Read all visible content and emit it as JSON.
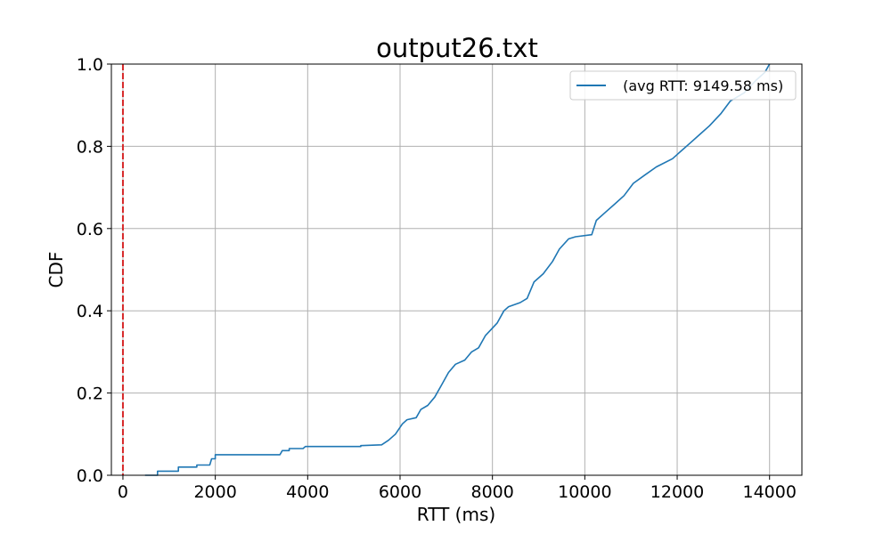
{
  "chart_data": {
    "type": "line",
    "title": "output26.txt",
    "xlabel": "RTT (ms)",
    "ylabel": "CDF",
    "xlim": [
      -250,
      14700
    ],
    "ylim": [
      0.0,
      1.0
    ],
    "x_ticks": [
      0,
      2000,
      4000,
      6000,
      8000,
      10000,
      12000,
      14000
    ],
    "x_tick_labels": [
      "0",
      "2000",
      "4000",
      "6000",
      "8000",
      "10000",
      "12000",
      "14000"
    ],
    "y_ticks": [
      0.0,
      0.2,
      0.4,
      0.6,
      0.8,
      1.0
    ],
    "y_tick_labels": [
      "0.0",
      "0.2",
      "0.4",
      "0.6",
      "0.8",
      "1.0"
    ],
    "grid": true,
    "legend_position": "top-right",
    "reference_line": {
      "x": 0,
      "color": "#d62728",
      "style": "dashed"
    },
    "series": [
      {
        "name": " (avg RTT: 9149.58 ms)",
        "color": "#1f77b4",
        "points": [
          [
            480,
            0.0
          ],
          [
            750,
            0.0
          ],
          [
            750,
            0.01
          ],
          [
            1200,
            0.01
          ],
          [
            1200,
            0.02
          ],
          [
            1600,
            0.02
          ],
          [
            1600,
            0.025
          ],
          [
            1880,
            0.025
          ],
          [
            1920,
            0.04
          ],
          [
            2000,
            0.04
          ],
          [
            2000,
            0.05
          ],
          [
            3400,
            0.05
          ],
          [
            3450,
            0.06
          ],
          [
            3600,
            0.06
          ],
          [
            3600,
            0.065
          ],
          [
            3900,
            0.065
          ],
          [
            3950,
            0.07
          ],
          [
            5150,
            0.07
          ],
          [
            5150,
            0.072
          ],
          [
            5600,
            0.074
          ],
          [
            5750,
            0.085
          ],
          [
            5900,
            0.1
          ],
          [
            6050,
            0.125
          ],
          [
            6150,
            0.135
          ],
          [
            6350,
            0.14
          ],
          [
            6450,
            0.16
          ],
          [
            6600,
            0.17
          ],
          [
            6750,
            0.19
          ],
          [
            6900,
            0.22
          ],
          [
            7050,
            0.25
          ],
          [
            7200,
            0.27
          ],
          [
            7400,
            0.28
          ],
          [
            7550,
            0.3
          ],
          [
            7700,
            0.31
          ],
          [
            7850,
            0.34
          ],
          [
            8100,
            0.37
          ],
          [
            8250,
            0.4
          ],
          [
            8350,
            0.41
          ],
          [
            8600,
            0.42
          ],
          [
            8750,
            0.43
          ],
          [
            8900,
            0.47
          ],
          [
            9100,
            0.49
          ],
          [
            9300,
            0.52
          ],
          [
            9450,
            0.55
          ],
          [
            9650,
            0.575
          ],
          [
            9800,
            0.58
          ],
          [
            10150,
            0.585
          ],
          [
            10250,
            0.62
          ],
          [
            10450,
            0.64
          ],
          [
            10650,
            0.66
          ],
          [
            10850,
            0.68
          ],
          [
            11050,
            0.71
          ],
          [
            11300,
            0.73
          ],
          [
            11550,
            0.75
          ],
          [
            11900,
            0.77
          ],
          [
            12100,
            0.79
          ],
          [
            12300,
            0.81
          ],
          [
            12500,
            0.83
          ],
          [
            12700,
            0.85
          ],
          [
            12950,
            0.88
          ],
          [
            13150,
            0.91
          ],
          [
            13450,
            0.93
          ],
          [
            13700,
            0.96
          ],
          [
            13900,
            0.98
          ],
          [
            14000,
            1.0
          ]
        ]
      }
    ]
  }
}
